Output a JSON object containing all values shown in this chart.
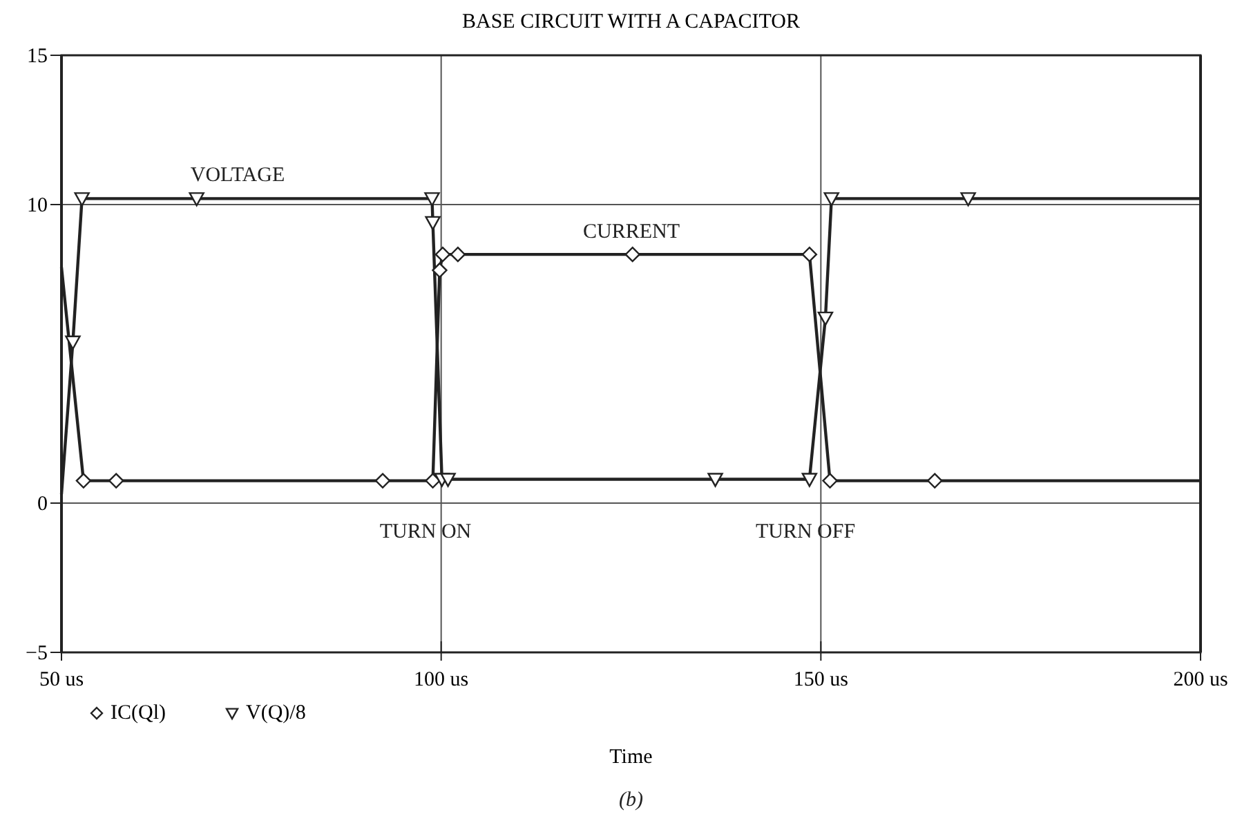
{
  "chart_data": {
    "type": "line",
    "title": "BASE CIRCUIT WITH A CAPACITOR",
    "xlabel": "Time",
    "xlim": [
      50,
      200
    ],
    "xticks": [
      {
        "value": 50,
        "label": "50 us"
      },
      {
        "value": 100,
        "label": "100 us"
      },
      {
        "value": 150,
        "label": "150 us"
      },
      {
        "value": 200,
        "label": "200 us"
      }
    ],
    "ylim": [
      -5,
      15
    ],
    "yticks": [
      -5,
      0,
      10,
      15
    ],
    "grid": true,
    "legend": "bottom left",
    "line_style": "solid",
    "series": [
      {
        "name": "IC(Ql)",
        "color": "#222222",
        "marker": "diamond",
        "x": [
          50,
          52.9,
          57.2,
          92.3,
          98.9,
          99.8,
          100.2,
          102.2,
          125.2,
          148.5,
          151.2,
          165,
          200
        ],
        "values": [
          7.9,
          0.75,
          0.75,
          0.75,
          0.75,
          7.8,
          8.33,
          8.33,
          8.33,
          8.33,
          0.75,
          0.75,
          0.75
        ]
      },
      {
        "name": "V(Q)/8",
        "color": "#222222",
        "marker": "triangle",
        "x": [
          50,
          51.5,
          52.7,
          67.8,
          98.8,
          98.9,
          100.1,
          100.9,
          136.1,
          148.5,
          150.6,
          151.4,
          169.4,
          200
        ],
        "values": [
          0.3,
          5.4,
          10.2,
          10.2,
          10.2,
          9.4,
          0.8,
          0.8,
          0.8,
          0.8,
          6.2,
          10.2,
          10.2,
          10.2
        ]
      }
    ],
    "annotations": [
      "VOLTAGE",
      "CURRENT",
      "TURN ON",
      "TURN OFF",
      "(b)"
    ]
  }
}
